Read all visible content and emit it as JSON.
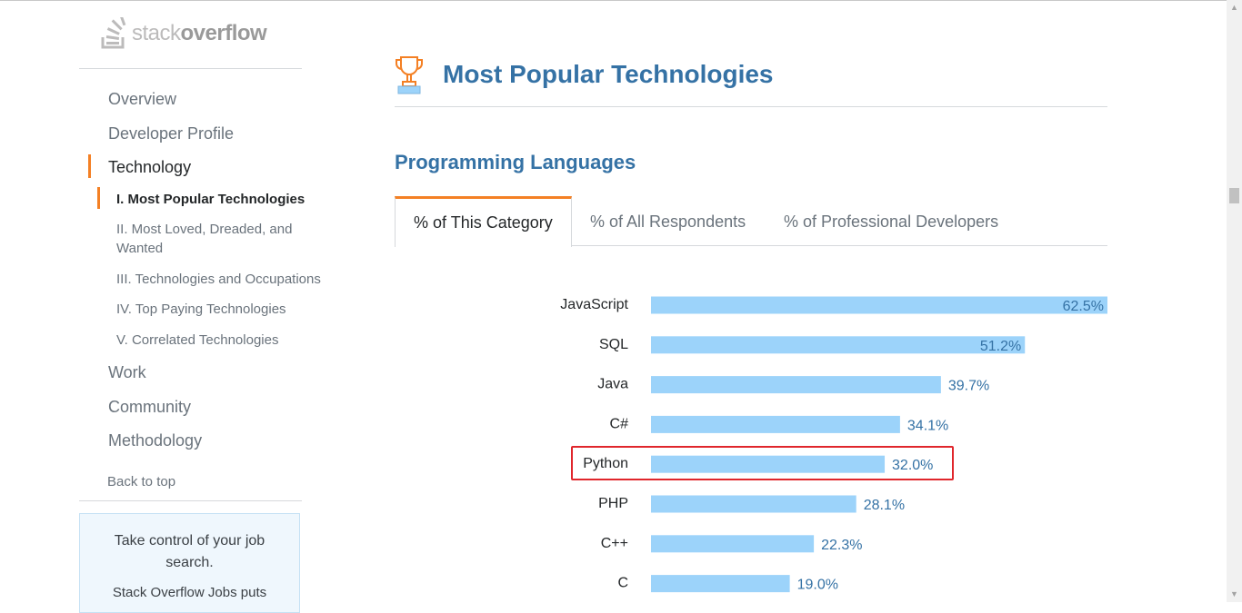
{
  "logo": {
    "light": "stack",
    "bold": "overflow"
  },
  "sidebar": {
    "items": [
      {
        "label": "Overview"
      },
      {
        "label": "Developer Profile"
      },
      {
        "label": "Technology"
      },
      {
        "label": "Work"
      },
      {
        "label": "Community"
      },
      {
        "label": "Methodology"
      }
    ],
    "subitems": [
      {
        "label": "I. Most Popular Technologies"
      },
      {
        "label": "II. Most Loved, Dreaded, and Wanted"
      },
      {
        "label": "III. Technologies and Occupations"
      },
      {
        "label": "IV. Top Paying Technologies"
      },
      {
        "label": "V. Correlated Technologies"
      }
    ],
    "back_to_top": "Back to top",
    "promo": {
      "title": "Take control of your job search.",
      "body": "Stack Overflow Jobs puts"
    }
  },
  "main": {
    "title": "Most Popular Technologies",
    "section": "Programming Languages",
    "tabs": [
      {
        "label": "% of This Category"
      },
      {
        "label": "% of All Respondents"
      },
      {
        "label": "% of Professional Developers"
      }
    ]
  },
  "colors": {
    "accent": "#f48024",
    "title": "#3572a5",
    "bar": "#9cd3fa",
    "highlight": "#e0262c"
  },
  "chart_data": {
    "type": "bar",
    "orientation": "horizontal",
    "categories": [
      "JavaScript",
      "SQL",
      "Java",
      "C#",
      "Python",
      "PHP",
      "C++",
      "C"
    ],
    "values": [
      62.5,
      51.2,
      39.7,
      34.1,
      32.0,
      28.1,
      22.3,
      19.0
    ],
    "value_labels": [
      "62.5%",
      "51.2%",
      "39.7%",
      "34.1%",
      "32.0%",
      "28.1%",
      "22.3%",
      "19.0%"
    ],
    "xlim": [
      0,
      62.5
    ],
    "highlighted_category": "Python"
  }
}
